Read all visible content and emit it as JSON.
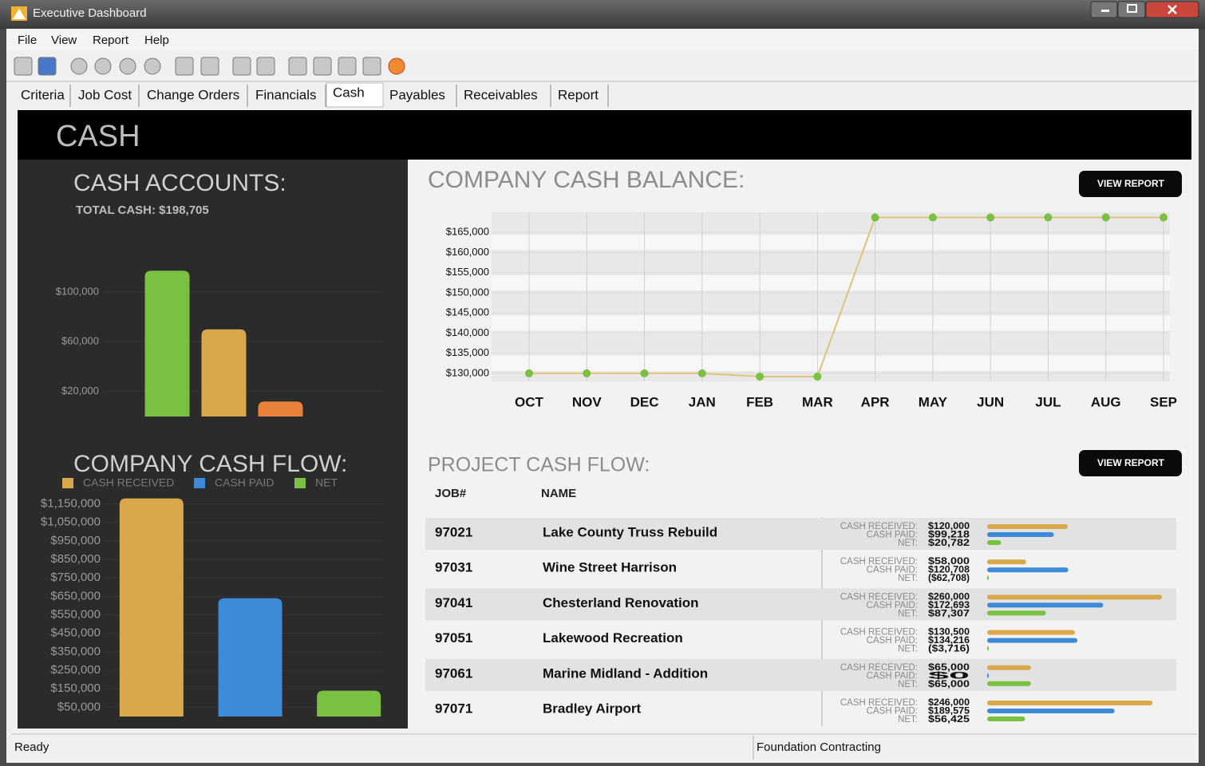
{
  "window": {
    "title": "Executive Dashboard",
    "menu": [
      "File",
      "View",
      "Report",
      "Help"
    ],
    "tabs": [
      "Criteria",
      "Job Cost",
      "Change Orders",
      "Financials",
      "Cash",
      "Payables",
      "Receivables",
      "Report"
    ],
    "active_tab": 4
  },
  "page_title": "CASH",
  "chart_data": [
    {
      "type": "bar",
      "title": "CASH ACCOUNTS:",
      "subtitle": "TOTAL CASH: $198,705",
      "values": [
        117000,
        70000,
        12000
      ],
      "colors": [
        "#7ac143",
        "#d9a84a",
        "#e8823a"
      ],
      "ylim": [
        0,
        130000
      ],
      "yticks": [
        {
          "value": 20000,
          "label": "$20,000"
        },
        {
          "value": 60000,
          "label": "$60,000"
        },
        {
          "value": 100000,
          "label": "$100,000"
        }
      ],
      "grid": true
    },
    {
      "type": "bar",
      "title": "COMPANY CASH FLOW:",
      "series": [
        {
          "name": "CASH RECEIVED",
          "color": "#d9a84a",
          "values": [
            1180000
          ]
        },
        {
          "name": "CASH PAID",
          "color": "#3d8ad8",
          "values": [
            640000
          ]
        },
        {
          "name": "NET",
          "color": "#7ac143",
          "values": [
            140000
          ]
        }
      ],
      "ylim": [
        0,
        1200000
      ],
      "yticks": [
        {
          "value": 50000,
          "label": "$50,000"
        },
        {
          "value": 150000,
          "label": "$150,000"
        },
        {
          "value": 250000,
          "label": "$250,000"
        },
        {
          "value": 350000,
          "label": "$350,000"
        },
        {
          "value": 450000,
          "label": "$450,000"
        },
        {
          "value": 550000,
          "label": "$550,000"
        },
        {
          "value": 650000,
          "label": "$650,000"
        },
        {
          "value": 750000,
          "label": "$750,000"
        },
        {
          "value": 850000,
          "label": "$850,000"
        },
        {
          "value": 950000,
          "label": "$950,000"
        },
        {
          "value": 1050000,
          "label": "$1,050,000"
        },
        {
          "value": 1150000,
          "label": "$1,150,000"
        }
      ],
      "grid": true
    },
    {
      "type": "line",
      "title": "COMPANY CASH BALANCE:",
      "button": "VIEW REPORT",
      "categories": [
        "OCT",
        "NOV",
        "DEC",
        "JAN",
        "FEB",
        "MAR",
        "APR",
        "MAY",
        "JUN",
        "JUL",
        "AUG",
        "SEP"
      ],
      "values": [
        130000,
        130000,
        130000,
        130000,
        129200,
        129200,
        168700,
        168700,
        168700,
        168700,
        168700,
        168700
      ],
      "color": "#e2c27a",
      "marker_color": "#7ac143",
      "ylim": [
        128000,
        170000
      ],
      "yticks": [
        {
          "value": 130000,
          "label": "$130,000"
        },
        {
          "value": 135000,
          "label": "$135,000"
        },
        {
          "value": 140000,
          "label": "$140,000"
        },
        {
          "value": 145000,
          "label": "$145,000"
        },
        {
          "value": 150000,
          "label": "$150,000"
        },
        {
          "value": 155000,
          "label": "$155,000"
        },
        {
          "value": 160000,
          "label": "$160,000"
        },
        {
          "value": 165000,
          "label": "$165,000"
        }
      ],
      "grid": true
    }
  ],
  "project_cash_flow": {
    "title": "PROJECT CASH FLOW:",
    "button": "VIEW REPORT",
    "columns": [
      "JOB#",
      "NAME"
    ],
    "metric_labels": [
      "CASH RECEIVED:",
      "CASH PAID:",
      "NET:"
    ],
    "colors": [
      "#d9a84a",
      "#3d8ad8",
      "#7ac143"
    ],
    "xlim": [
      0,
      260000
    ],
    "rows": [
      {
        "job": "97021",
        "name": "Lake County Truss Rebuild",
        "values": [
          120000,
          99218,
          20782
        ],
        "value_labels": [
          "$120,000",
          "$99,218",
          "$20,782"
        ]
      },
      {
        "job": "97031",
        "name": "Wine Street Harrison",
        "values": [
          58000,
          120708,
          -62708
        ],
        "value_labels": [
          "$58,000",
          "$120,708",
          "($62,708)"
        ]
      },
      {
        "job": "97041",
        "name": "Chesterland Renovation",
        "values": [
          260000,
          172693,
          87307
        ],
        "value_labels": [
          "$260,000",
          "$172,693",
          "$87,307"
        ]
      },
      {
        "job": "97051",
        "name": "Lakewood Recreation",
        "values": [
          130500,
          134216,
          -3716
        ],
        "value_labels": [
          "$130,500",
          "$134,216",
          "($3,716)"
        ]
      },
      {
        "job": "97061",
        "name": "Marine Midland - Addition",
        "values": [
          65000,
          0,
          65000
        ],
        "value_labels": [
          "$65,000",
          "$0",
          "$65,000"
        ]
      },
      {
        "job": "97071",
        "name": "Bradley Airport",
        "values": [
          246000,
          189575,
          56425
        ],
        "value_labels": [
          "$246,000",
          "$189,575",
          "$56,425"
        ]
      }
    ]
  },
  "status": {
    "left": "Ready",
    "right": "Foundation Contracting"
  }
}
